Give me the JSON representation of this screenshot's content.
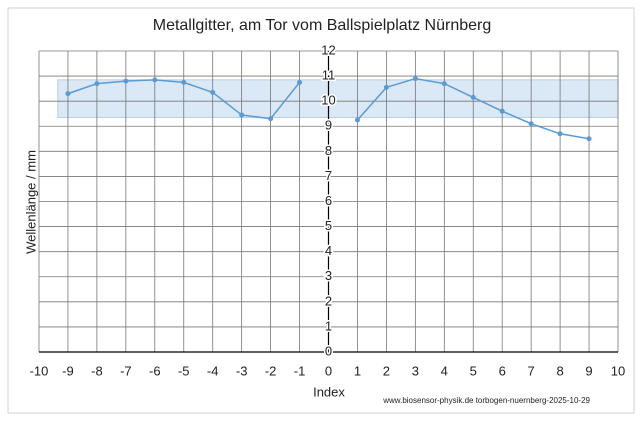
{
  "chart_data": {
    "type": "line",
    "title": "Metallgitter,  am Tor vom Ballspielplatz Nürnberg",
    "x_label": "Index",
    "y_label": "Wellenlänge / mm",
    "footer": "www.biosensor-physik.de  torbogen-nuernberg-2025-10-29",
    "x": [
      -9,
      -8,
      -7,
      -6,
      -5,
      -4,
      -3,
      -2,
      -1,
      0,
      1,
      2,
      3,
      4,
      5,
      6,
      7,
      8,
      9
    ],
    "series": [
      {
        "color": "#5b9bd5",
        "values": [
          10.3,
          10.7,
          10.8,
          10.85,
          10.75,
          10.35,
          9.45,
          9.3,
          10.75,
          null,
          9.25,
          10.55,
          10.9,
          10.7,
          10.15,
          9.6,
          9.1,
          8.7,
          8.5
        ]
      }
    ],
    "band": {
      "x": [
        -9.35,
        10
      ],
      "y": [
        9.35,
        10.85
      ],
      "color": "#dbe8f6"
    },
    "xlim": [
      -10,
      10
    ],
    "xticks": [
      -10,
      -9,
      -8,
      -7,
      -6,
      -5,
      -4,
      -3,
      -2,
      -1,
      0,
      1,
      2,
      3,
      4,
      5,
      6,
      7,
      8,
      9,
      10
    ],
    "ylim": [
      0,
      12
    ],
    "yticks": [
      0,
      1,
      2,
      3,
      4,
      5,
      6,
      7,
      8,
      9,
      10,
      11,
      12
    ],
    "grid": true
  }
}
